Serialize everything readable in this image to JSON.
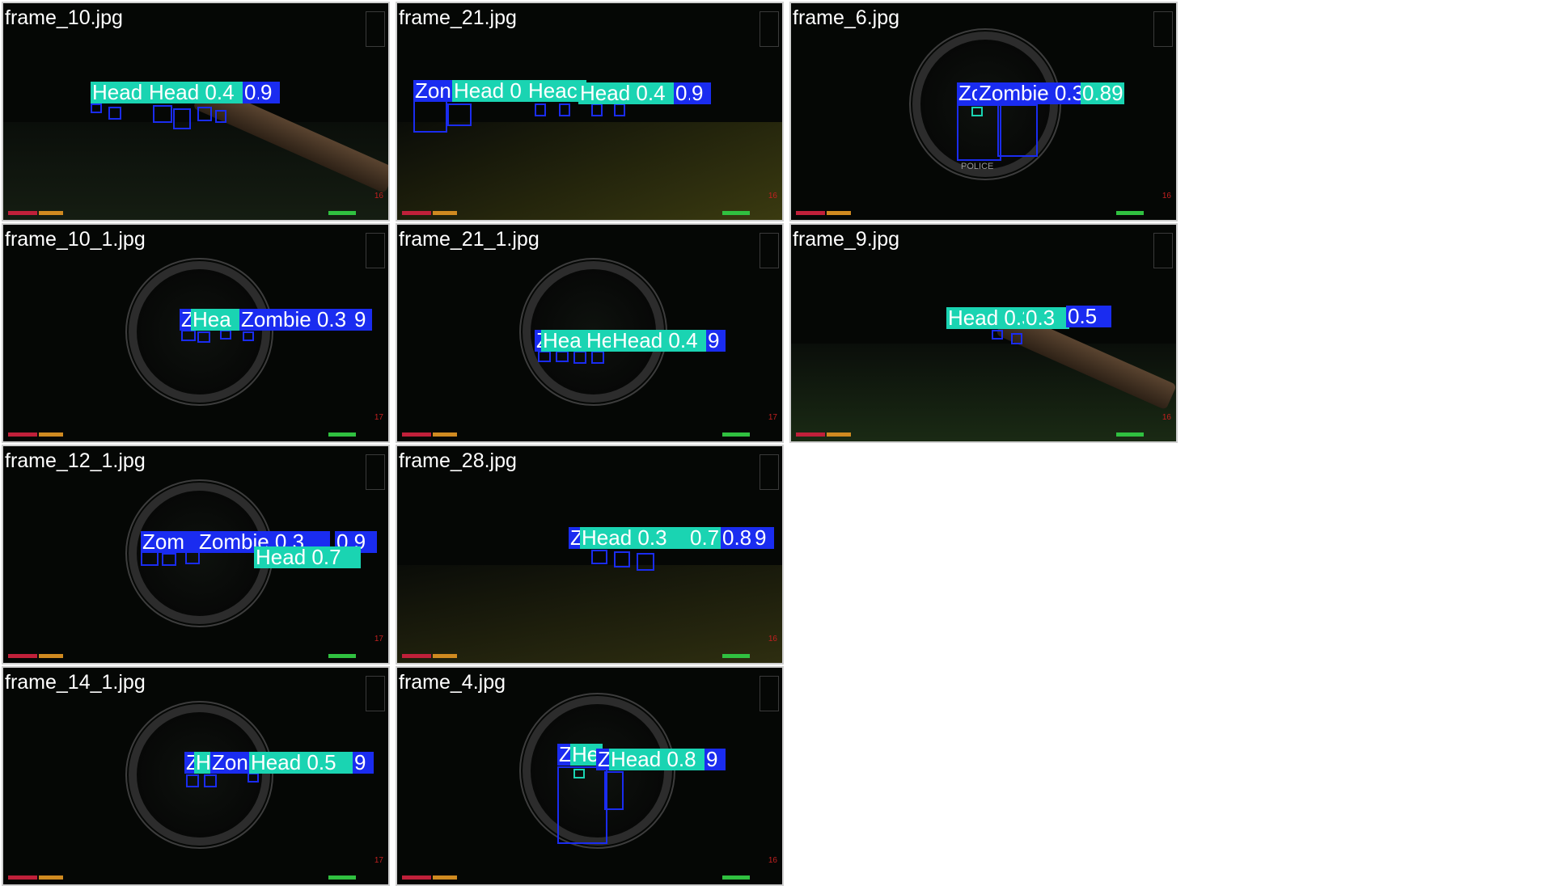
{
  "tiles": [
    {
      "name": "frame_10.jpg",
      "labels": [
        "Head 0",
        "Head 0.4",
        "0.79",
        "9"
      ],
      "hud_number": "16"
    },
    {
      "name": "frame_21.jpg",
      "labels": [
        "Zon",
        "Head 0",
        "Heac",
        "Head 0.4",
        "0.58",
        "9"
      ],
      "hud_number": "16"
    },
    {
      "name": "frame_6.jpg",
      "labels": [
        "Zc",
        "Zombie 0.3",
        "0.89"
      ],
      "hud_number": "16",
      "sign_text": "POLICE"
    },
    {
      "name": "frame_10_1.jpg",
      "labels": [
        "Z",
        "Hea",
        "Zombie 0.3",
        "9"
      ],
      "hud_number": "17"
    },
    {
      "name": "frame_21_1.jpg",
      "labels": [
        "Z",
        "Hea",
        "He",
        "Head 0.4",
        "9"
      ],
      "hud_number": "17"
    },
    {
      "name": "frame_9.jpg",
      "labels": [
        "Head 0.3",
        "0.3",
        "0.5"
      ],
      "hud_number": "16"
    },
    {
      "name": "frame_12_1.jpg",
      "labels": [
        "Zom",
        "Zombie 0.3",
        "0.9",
        "Head 0.7"
      ],
      "hud_number": "17"
    },
    {
      "name": "frame_28.jpg",
      "labels": [
        "Z",
        "Head 0.3",
        "0.7",
        "0.8",
        "9"
      ],
      "hud_number": "16"
    },
    {
      "name": "frame_14_1.jpg",
      "labels": [
        "Z",
        "H",
        "Zon",
        "Head 0.5",
        "9"
      ],
      "hud_number": "17"
    },
    {
      "name": "frame_4.jpg",
      "labels": [
        "Z",
        "He",
        "Z",
        "Head 0.8",
        "9"
      ],
      "hud_number": "16"
    }
  ],
  "colors": {
    "zombie_box": "#1a2cf0",
    "head_box": "#1ad4b2",
    "background": "#ffffff"
  }
}
